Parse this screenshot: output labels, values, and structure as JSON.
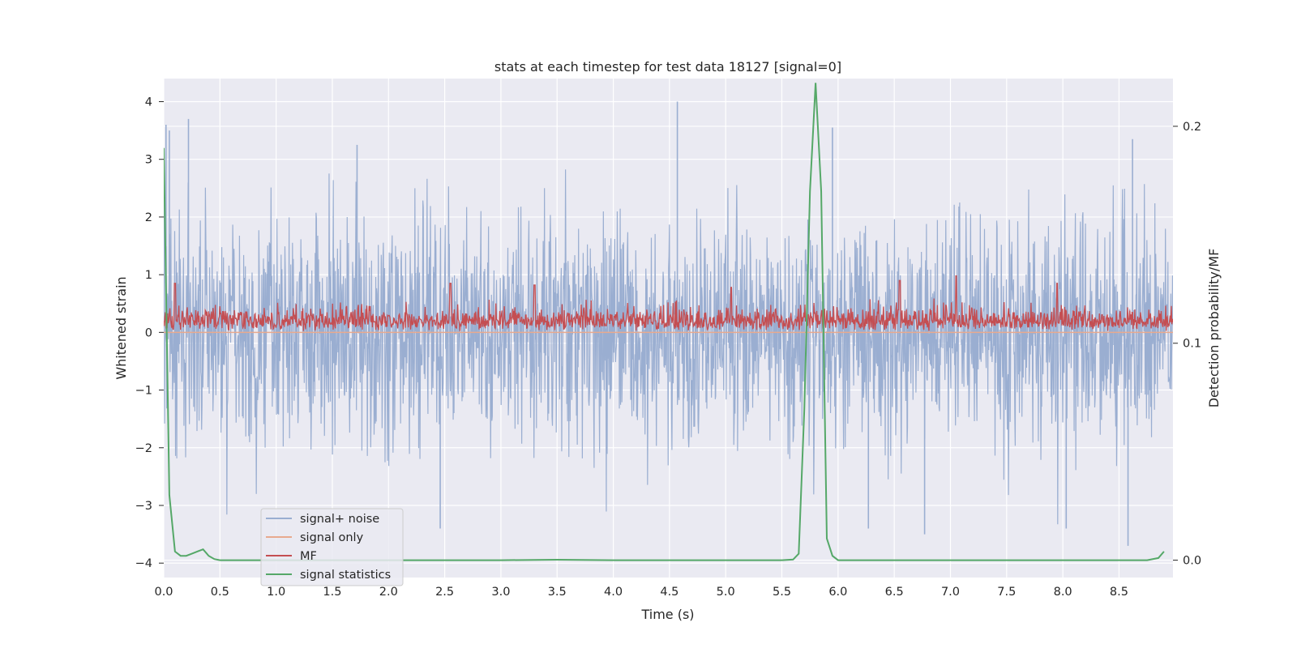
{
  "chart_data": {
    "type": "line",
    "title": "stats at each timestep for test data 18127 [signal=0]",
    "xlabel": "Time (s)",
    "ylabel": "Whitened strain",
    "y2label": "Detection probability/MF",
    "xlim": [
      0.0,
      8.98
    ],
    "ylim": [
      -4.25,
      4.4
    ],
    "y2lim": [
      -0.008,
      0.222
    ],
    "xticks": [
      0.0,
      0.5,
      1.0,
      1.5,
      2.0,
      2.5,
      3.0,
      3.5,
      4.0,
      4.5,
      5.0,
      5.5,
      6.0,
      6.5,
      7.0,
      7.5,
      8.0,
      8.5
    ],
    "xtick_labels": [
      "0.0",
      "0.5",
      "1.0",
      "1.5",
      "2.0",
      "2.5",
      "3.0",
      "3.5",
      "4.0",
      "4.5",
      "5.0",
      "5.5",
      "6.0",
      "6.5",
      "7.0",
      "7.5",
      "8.0",
      "8.5"
    ],
    "yticks": [
      4,
      3,
      2,
      1,
      0,
      -1,
      -2,
      -3,
      -4
    ],
    "ytick_labels": [
      "4",
      "3",
      "2",
      "1",
      "0",
      "−1",
      "−2",
      "−3",
      "−4"
    ],
    "y2ticks": [
      0.2,
      0.1,
      0.0
    ],
    "y2tick_labels": [
      "0.2",
      "0.1",
      "0.0"
    ],
    "legend_position": "lower-left",
    "colors": {
      "plot_bg": "#eaeaf2",
      "grid": "#ffffff",
      "noise": "#9aaed1",
      "signal": "#e8a98e",
      "mf": "#c44e52",
      "stats": "#55a868"
    },
    "series": [
      {
        "name": "signal+ noise",
        "axis": "left",
        "style": "noise",
        "amplitude_envelope": {
          "typical_upper": 2.2,
          "typical_lower": -2.1,
          "max": 4.0,
          "min": -3.7
        },
        "notable_peaks": [
          {
            "x": 0.02,
            "y": 3.6
          },
          {
            "x": 0.05,
            "y": 3.5
          },
          {
            "x": 0.22,
            "y": 3.7
          },
          {
            "x": 1.72,
            "y": 3.25
          },
          {
            "x": 4.57,
            "y": 4.0
          },
          {
            "x": 5.95,
            "y": 3.55
          },
          {
            "x": 8.62,
            "y": 3.35
          },
          {
            "x": 2.46,
            "y": -3.4
          },
          {
            "x": 6.27,
            "y": -3.4
          },
          {
            "x": 6.77,
            "y": -3.5
          },
          {
            "x": 8.03,
            "y": -3.4
          },
          {
            "x": 8.58,
            "y": -3.7
          }
        ]
      },
      {
        "name": "signal only",
        "axis": "left",
        "style": "flat",
        "x": [
          0.0,
          8.98
        ],
        "y": [
          0.0,
          0.0
        ]
      },
      {
        "name": "MF",
        "axis": "left",
        "style": "band",
        "amplitude_envelope": {
          "baseline": 0.02,
          "typical_upper": 0.5,
          "max": 0.98
        },
        "notable_peaks": [
          {
            "x": 0.1,
            "y": 0.85
          },
          {
            "x": 2.55,
            "y": 0.85
          },
          {
            "x": 3.3,
            "y": 0.82
          },
          {
            "x": 5.05,
            "y": 0.78
          },
          {
            "x": 6.55,
            "y": 0.9
          },
          {
            "x": 7.05,
            "y": 0.98
          },
          {
            "x": 7.95,
            "y": 0.85
          }
        ]
      },
      {
        "name": "signal statistics",
        "axis": "right",
        "x": [
          0.0,
          0.05,
          0.1,
          0.15,
          0.2,
          0.25,
          0.3,
          0.35,
          0.4,
          0.45,
          0.5,
          1.0,
          2.0,
          3.0,
          3.5,
          4.0,
          4.5,
          5.0,
          5.5,
          5.6,
          5.65,
          5.7,
          5.75,
          5.8,
          5.85,
          5.9,
          5.95,
          6.0,
          6.5,
          7.0,
          7.5,
          8.0,
          8.5,
          8.75,
          8.85,
          8.9
        ],
        "y": [
          0.19,
          0.03,
          0.004,
          0.002,
          0.002,
          0.003,
          0.004,
          0.005,
          0.002,
          0.0005,
          0.0,
          0.0,
          0.0,
          0.0,
          0.0002,
          0.0,
          0.0,
          0.0,
          0.0,
          0.0003,
          0.003,
          0.07,
          0.17,
          0.22,
          0.17,
          0.01,
          0.002,
          0.0,
          0.0,
          0.0,
          0.0,
          0.0,
          0.0,
          0.0,
          0.001,
          0.004
        ]
      }
    ]
  }
}
